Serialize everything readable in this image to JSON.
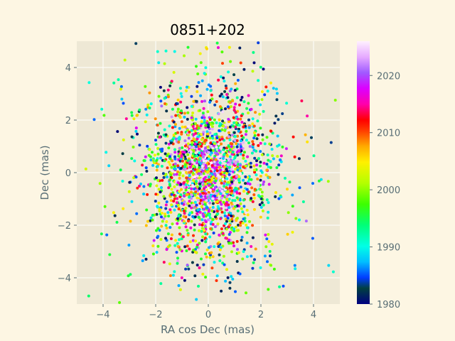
{
  "chart_data": {
    "type": "scatter",
    "title": "0851+202",
    "xlabel": "RA cos Dec (mas)",
    "ylabel": "Dec (mas)",
    "xlim": [
      -5,
      5
    ],
    "ylim": [
      -5,
      5
    ],
    "x_ticks": [
      -4,
      -2,
      0,
      2,
      4
    ],
    "y_ticks": [
      -4,
      -2,
      0,
      2,
      4
    ],
    "x_tick_labels": [
      "−4",
      "−2",
      "0",
      "2",
      "4"
    ],
    "y_tick_labels": [
      "−4",
      "−2",
      "0",
      "2",
      "4"
    ],
    "grid": true,
    "colorbar": {
      "min": 1980,
      "max": 2026,
      "ticks": [
        1980,
        1990,
        2000,
        2010,
        2020
      ],
      "tick_labels": [
        "1980",
        "1990",
        "2000",
        "2010",
        "2020"
      ],
      "colormap": "gist_ncar-like"
    },
    "points_description_note": "",
    "points_summary": {
      "center": [
        0,
        0
      ],
      "spread_x_sigma": 1.1,
      "spread_y_sigma": 1.6,
      "recent_epochs_concentrated_at_center": true
    }
  },
  "colors": {
    "figure_bg": "#fdf6e3",
    "axes_bg": "#eee8d5",
    "grid": "#ffffff",
    "text": "#586e75"
  }
}
